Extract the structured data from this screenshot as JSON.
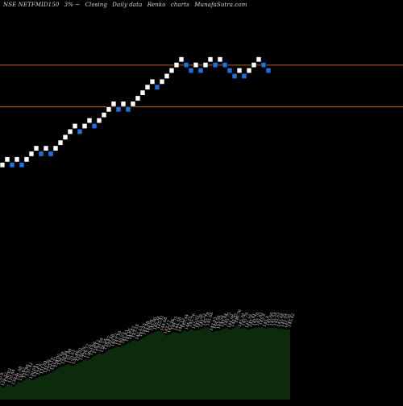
{
  "header": {
    "symbol": "NSE NETFMID150",
    "change": "3% ~",
    "label_closing": "Closing",
    "label_daily": "Daily data",
    "label_renko": "Renko",
    "label_charts": "charts",
    "site": "MunafaSutra.com"
  },
  "colors": {
    "background": "#000000",
    "up_brick": "#ffffff",
    "down_brick": "#1e6fe0",
    "reference_line": "#c0632a",
    "volume_fill": "#0c2a0c",
    "volume_text": "#cfcfcf"
  },
  "chart_data": {
    "type": "renko",
    "reference_lines": [
      146.0,
      138.5
    ],
    "brick_size": 1.0,
    "bricks": [
      {
        "dir": "up",
        "level": 128.0
      },
      {
        "dir": "up",
        "level": 129.0
      },
      {
        "dir": "down",
        "level": 128.0
      },
      {
        "dir": "up",
        "level": 129.0
      },
      {
        "dir": "down",
        "level": 128.0
      },
      {
        "dir": "up",
        "level": 129.0
      },
      {
        "dir": "up",
        "level": 130.0
      },
      {
        "dir": "up",
        "level": 131.0
      },
      {
        "dir": "down",
        "level": 130.0
      },
      {
        "dir": "up",
        "level": 131.0
      },
      {
        "dir": "down",
        "level": 130.0
      },
      {
        "dir": "up",
        "level": 131.0
      },
      {
        "dir": "up",
        "level": 132.0
      },
      {
        "dir": "up",
        "level": 133.0
      },
      {
        "dir": "up",
        "level": 134.0
      },
      {
        "dir": "up",
        "level": 135.0
      },
      {
        "dir": "down",
        "level": 134.0
      },
      {
        "dir": "up",
        "level": 135.0
      },
      {
        "dir": "up",
        "level": 136.0
      },
      {
        "dir": "down",
        "level": 135.0
      },
      {
        "dir": "up",
        "level": 136.0
      },
      {
        "dir": "up",
        "level": 137.0
      },
      {
        "dir": "up",
        "level": 138.0
      },
      {
        "dir": "up",
        "level": 139.0
      },
      {
        "dir": "down",
        "level": 138.0
      },
      {
        "dir": "up",
        "level": 139.0
      },
      {
        "dir": "down",
        "level": 138.0
      },
      {
        "dir": "up",
        "level": 139.0
      },
      {
        "dir": "up",
        "level": 140.0
      },
      {
        "dir": "up",
        "level": 141.0
      },
      {
        "dir": "up",
        "level": 142.0
      },
      {
        "dir": "up",
        "level": 143.0
      },
      {
        "dir": "down",
        "level": 142.0
      },
      {
        "dir": "up",
        "level": 143.0
      },
      {
        "dir": "up",
        "level": 144.0
      },
      {
        "dir": "up",
        "level": 145.0
      },
      {
        "dir": "up",
        "level": 146.0
      },
      {
        "dir": "up",
        "level": 147.0
      },
      {
        "dir": "down",
        "level": 146.0
      },
      {
        "dir": "down",
        "level": 145.0
      },
      {
        "dir": "up",
        "level": 146.0
      },
      {
        "dir": "down",
        "level": 145.0
      },
      {
        "dir": "up",
        "level": 146.0
      },
      {
        "dir": "up",
        "level": 147.0
      },
      {
        "dir": "down",
        "level": 146.0
      },
      {
        "dir": "up",
        "level": 147.0
      },
      {
        "dir": "down",
        "level": 146.0
      },
      {
        "dir": "down",
        "level": 145.0
      },
      {
        "dir": "down",
        "level": 144.0
      },
      {
        "dir": "up",
        "level": 145.0
      },
      {
        "dir": "down",
        "level": 144.0
      },
      {
        "dir": "up",
        "level": 145.0
      },
      {
        "dir": "up",
        "level": 146.0
      },
      {
        "dir": "up",
        "level": 147.0
      },
      {
        "dir": "down",
        "level": 146.0
      },
      {
        "dir": "down",
        "level": 145.0
      }
    ],
    "volume": {
      "labels": [
        "130.8",
        "129.12",
        "130.62",
        "129.84",
        "130.3",
        "131.08",
        "130.62",
        "131.48",
        "131.42",
        "130.64",
        "131.41",
        "131.6",
        "131.64",
        "132.38",
        "133.19",
        "133.22",
        "134.05",
        "134.58",
        "134.84",
        "135.88",
        "135.61",
        "135.46",
        "135.92",
        "136.19",
        "136.72",
        "136.79",
        "137.88",
        "138.12",
        "139.09",
        "138.54",
        "139.47",
        "139.88",
        "140.22",
        "141.16",
        "140.55",
        "141.43",
        "141.85",
        "142.47",
        "143.18",
        "142.13",
        "143.55",
        "143.98",
        "144.96",
        "145.06",
        "145.38",
        "145.41",
        "144.68",
        "143.17",
        "143.38",
        "144.75",
        "144.58",
        "144.12",
        "145.44",
        "144.75",
        "145.76",
        "145.03",
        "145.28",
        "145.52",
        "145.78",
        "145.66",
        "143.93",
        "144.56",
        "144.58",
        "145.44",
        "145.75",
        "144.98",
        "145.37",
        "146.76",
        "145.39",
        "145.76",
        "145.18",
        "145.41",
        "145.76",
        "145.82",
        "145.9",
        "145.4",
        "145.66",
        "145.54",
        "145.62",
        "145.48",
        "145.44",
        "145.36",
        "145.42"
      ],
      "values": [
        30,
        28,
        32,
        31,
        29,
        34,
        33,
        36,
        38,
        35,
        37,
        39,
        40,
        41,
        43,
        44,
        47,
        49,
        50,
        52,
        51,
        50,
        53,
        54,
        57,
        56,
        59,
        61,
        63,
        62,
        65,
        67,
        68,
        70,
        69,
        71,
        73,
        75,
        77,
        75,
        78,
        80,
        82,
        84,
        85,
        86,
        84,
        81,
        82,
        85,
        84,
        83,
        87,
        85,
        88,
        86,
        87,
        88,
        89,
        89,
        84,
        86,
        86,
        88,
        89,
        87,
        88,
        92,
        88,
        89,
        87,
        88,
        89,
        89,
        90,
        88,
        89,
        89,
        89,
        88,
        88,
        87,
        88
      ]
    }
  }
}
